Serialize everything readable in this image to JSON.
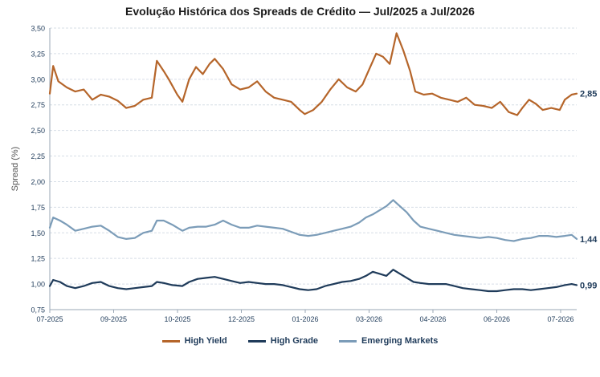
{
  "chart_data": {
    "type": "line",
    "title": "Evolução Histórica dos Spreads de Crédito — Jul/2025 a Jul/2026",
    "ylabel": "Spread (%)",
    "xlabel": "",
    "ylim": [
      0.75,
      3.5
    ],
    "yticks": [
      "0,75",
      "1,00",
      "1,25",
      "1,50",
      "1,75",
      "2,00",
      "2,25",
      "2,50",
      "2,75",
      "3,00",
      "3,25",
      "3,50"
    ],
    "x_tick_labels": [
      "07-2025",
      "09-2025",
      "10-2025",
      "12-2025",
      "01-2026",
      "03-2026",
      "04-2026",
      "06-2026",
      "07-2026"
    ],
    "grid": "horizontal",
    "legend_position": "bottom",
    "series": [
      {
        "name": "High Yield",
        "color": "#b5652a",
        "end_label": "2,85",
        "points": [
          [
            0,
            2.86
          ],
          [
            2,
            3.13
          ],
          [
            5,
            2.98
          ],
          [
            10,
            2.92
          ],
          [
            15,
            2.88
          ],
          [
            20,
            2.9
          ],
          [
            25,
            2.8
          ],
          [
            30,
            2.85
          ],
          [
            35,
            2.83
          ],
          [
            40,
            2.79
          ],
          [
            45,
            2.72
          ],
          [
            50,
            2.74
          ],
          [
            55,
            2.8
          ],
          [
            60,
            2.82
          ],
          [
            63,
            3.18
          ],
          [
            67,
            3.08
          ],
          [
            70,
            3.0
          ],
          [
            75,
            2.85
          ],
          [
            78,
            2.78
          ],
          [
            82,
            3.0
          ],
          [
            86,
            3.12
          ],
          [
            90,
            3.05
          ],
          [
            94,
            3.15
          ],
          [
            97,
            3.2
          ],
          [
            102,
            3.1
          ],
          [
            107,
            2.95
          ],
          [
            112,
            2.9
          ],
          [
            117,
            2.92
          ],
          [
            122,
            2.98
          ],
          [
            127,
            2.88
          ],
          [
            132,
            2.82
          ],
          [
            137,
            2.8
          ],
          [
            142,
            2.78
          ],
          [
            147,
            2.7
          ],
          [
            150,
            2.66
          ],
          [
            155,
            2.7
          ],
          [
            160,
            2.78
          ],
          [
            165,
            2.9
          ],
          [
            170,
            3.0
          ],
          [
            175,
            2.92
          ],
          [
            180,
            2.88
          ],
          [
            184,
            2.95
          ],
          [
            188,
            3.1
          ],
          [
            192,
            3.25
          ],
          [
            196,
            3.22
          ],
          [
            200,
            3.15
          ],
          [
            204,
            3.45
          ],
          [
            208,
            3.28
          ],
          [
            212,
            3.08
          ],
          [
            215,
            2.88
          ],
          [
            220,
            2.85
          ],
          [
            225,
            2.86
          ],
          [
            230,
            2.82
          ],
          [
            235,
            2.8
          ],
          [
            240,
            2.78
          ],
          [
            245,
            2.82
          ],
          [
            250,
            2.75
          ],
          [
            255,
            2.74
          ],
          [
            260,
            2.72
          ],
          [
            265,
            2.78
          ],
          [
            270,
            2.68
          ],
          [
            275,
            2.65
          ],
          [
            278,
            2.72
          ],
          [
            282,
            2.8
          ],
          [
            286,
            2.76
          ],
          [
            290,
            2.7
          ],
          [
            295,
            2.72
          ],
          [
            300,
            2.7
          ],
          [
            303,
            2.8
          ],
          [
            307,
            2.85
          ],
          [
            310,
            2.86
          ]
        ]
      },
      {
        "name": "High Grade",
        "color": "#1f3b5a",
        "end_label": "0,99",
        "points": [
          [
            0,
            0.98
          ],
          [
            2,
            1.04
          ],
          [
            6,
            1.02
          ],
          [
            10,
            0.98
          ],
          [
            15,
            0.96
          ],
          [
            20,
            0.98
          ],
          [
            25,
            1.01
          ],
          [
            30,
            1.02
          ],
          [
            35,
            0.98
          ],
          [
            40,
            0.96
          ],
          [
            45,
            0.95
          ],
          [
            50,
            0.96
          ],
          [
            55,
            0.97
          ],
          [
            60,
            0.98
          ],
          [
            63,
            1.02
          ],
          [
            67,
            1.01
          ],
          [
            72,
            0.99
          ],
          [
            78,
            0.98
          ],
          [
            82,
            1.02
          ],
          [
            87,
            1.05
          ],
          [
            92,
            1.06
          ],
          [
            97,
            1.07
          ],
          [
            102,
            1.05
          ],
          [
            107,
            1.03
          ],
          [
            112,
            1.01
          ],
          [
            117,
            1.02
          ],
          [
            122,
            1.01
          ],
          [
            127,
            1.0
          ],
          [
            132,
            1.0
          ],
          [
            137,
            0.99
          ],
          [
            142,
            0.97
          ],
          [
            147,
            0.95
          ],
          [
            152,
            0.94
          ],
          [
            157,
            0.95
          ],
          [
            162,
            0.98
          ],
          [
            167,
            1.0
          ],
          [
            172,
            1.02
          ],
          [
            177,
            1.03
          ],
          [
            182,
            1.05
          ],
          [
            186,
            1.08
          ],
          [
            190,
            1.12
          ],
          [
            194,
            1.1
          ],
          [
            198,
            1.08
          ],
          [
            202,
            1.14
          ],
          [
            206,
            1.1
          ],
          [
            210,
            1.06
          ],
          [
            214,
            1.02
          ],
          [
            218,
            1.01
          ],
          [
            223,
            1.0
          ],
          [
            228,
            1.0
          ],
          [
            233,
            1.0
          ],
          [
            238,
            0.98
          ],
          [
            243,
            0.96
          ],
          [
            248,
            0.95
          ],
          [
            253,
            0.94
          ],
          [
            258,
            0.93
          ],
          [
            263,
            0.93
          ],
          [
            268,
            0.94
          ],
          [
            273,
            0.95
          ],
          [
            278,
            0.95
          ],
          [
            283,
            0.94
          ],
          [
            288,
            0.95
          ],
          [
            293,
            0.96
          ],
          [
            298,
            0.97
          ],
          [
            303,
            0.99
          ],
          [
            307,
            1.0
          ],
          [
            310,
            0.99
          ]
        ]
      },
      {
        "name": "Emerging Markets",
        "color": "#7b9cb8",
        "end_label": "1,44",
        "points": [
          [
            0,
            1.55
          ],
          [
            2,
            1.65
          ],
          [
            6,
            1.62
          ],
          [
            10,
            1.58
          ],
          [
            15,
            1.52
          ],
          [
            20,
            1.54
          ],
          [
            25,
            1.56
          ],
          [
            30,
            1.57
          ],
          [
            35,
            1.52
          ],
          [
            40,
            1.46
          ],
          [
            45,
            1.44
          ],
          [
            50,
            1.45
          ],
          [
            55,
            1.5
          ],
          [
            60,
            1.52
          ],
          [
            63,
            1.62
          ],
          [
            67,
            1.62
          ],
          [
            72,
            1.58
          ],
          [
            78,
            1.52
          ],
          [
            82,
            1.55
          ],
          [
            87,
            1.56
          ],
          [
            92,
            1.56
          ],
          [
            97,
            1.58
          ],
          [
            102,
            1.62
          ],
          [
            107,
            1.58
          ],
          [
            112,
            1.55
          ],
          [
            117,
            1.55
          ],
          [
            122,
            1.57
          ],
          [
            127,
            1.56
          ],
          [
            132,
            1.55
          ],
          [
            137,
            1.54
          ],
          [
            142,
            1.51
          ],
          [
            147,
            1.48
          ],
          [
            152,
            1.47
          ],
          [
            157,
            1.48
          ],
          [
            162,
            1.5
          ],
          [
            167,
            1.52
          ],
          [
            172,
            1.54
          ],
          [
            177,
            1.56
          ],
          [
            182,
            1.6
          ],
          [
            186,
            1.65
          ],
          [
            190,
            1.68
          ],
          [
            194,
            1.72
          ],
          [
            198,
            1.76
          ],
          [
            202,
            1.82
          ],
          [
            206,
            1.76
          ],
          [
            210,
            1.7
          ],
          [
            214,
            1.62
          ],
          [
            218,
            1.56
          ],
          [
            223,
            1.54
          ],
          [
            228,
            1.52
          ],
          [
            233,
            1.5
          ],
          [
            238,
            1.48
          ],
          [
            243,
            1.47
          ],
          [
            248,
            1.46
          ],
          [
            253,
            1.45
          ],
          [
            258,
            1.46
          ],
          [
            263,
            1.45
          ],
          [
            268,
            1.43
          ],
          [
            273,
            1.42
          ],
          [
            278,
            1.44
          ],
          [
            283,
            1.45
          ],
          [
            288,
            1.47
          ],
          [
            293,
            1.47
          ],
          [
            298,
            1.46
          ],
          [
            303,
            1.47
          ],
          [
            307,
            1.48
          ],
          [
            310,
            1.44
          ]
        ]
      }
    ]
  }
}
